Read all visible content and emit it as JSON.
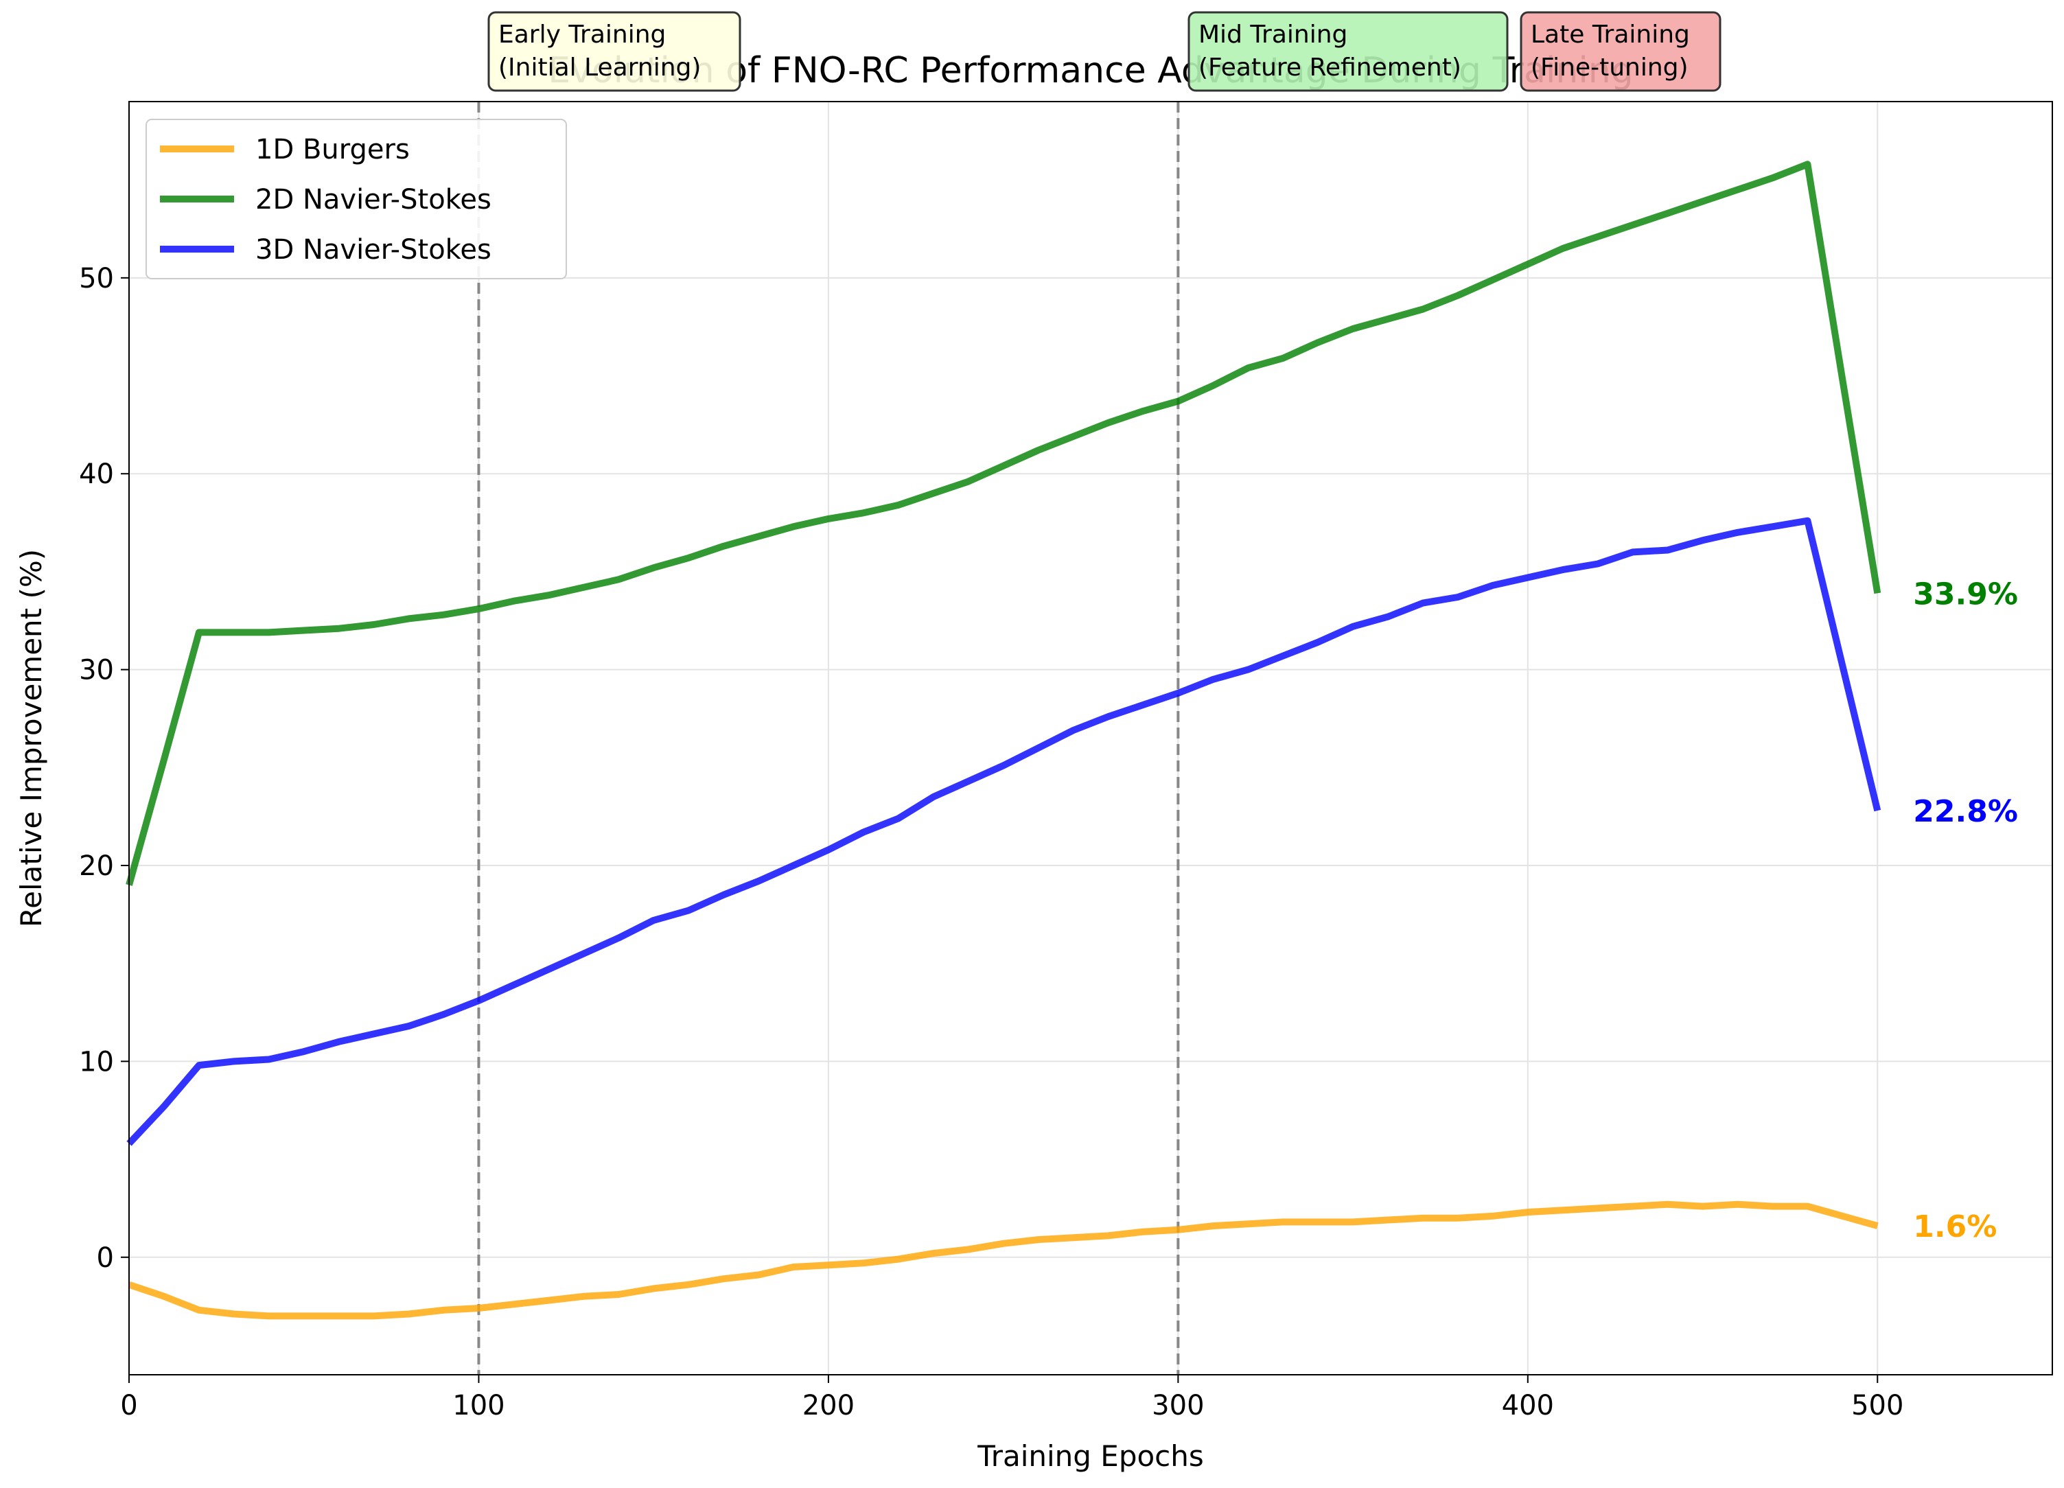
{
  "chart_data": {
    "type": "line",
    "title": "Evolution of FNO-RC Performance Advantage During Training",
    "xlabel": "Training Epochs",
    "ylabel": "Relative Improvement (%)",
    "xlim": [
      0,
      550
    ],
    "ylim": [
      -6,
      59
    ],
    "xticks": [
      0,
      100,
      200,
      300,
      400,
      500
    ],
    "yticks": [
      0,
      10,
      20,
      30,
      40,
      50
    ],
    "grid": true,
    "legend_position": "upper-left",
    "x": [
      0,
      10,
      20,
      30,
      40,
      50,
      60,
      70,
      80,
      90,
      100,
      110,
      120,
      130,
      140,
      150,
      160,
      170,
      180,
      190,
      200,
      210,
      220,
      230,
      240,
      250,
      260,
      270,
      280,
      290,
      300,
      310,
      320,
      330,
      340,
      350,
      360,
      370,
      380,
      390,
      400,
      410,
      420,
      430,
      440,
      450,
      460,
      470,
      480,
      490,
      500
    ],
    "series": [
      {
        "name": "1D Burgers",
        "color": "#FFA500",
        "values": [
          -1.4,
          -2.0,
          -2.7,
          -2.9,
          -3.0,
          -3.0,
          -3.0,
          -3.0,
          -2.9,
          -2.7,
          -2.6,
          -2.4,
          -2.2,
          -2.0,
          -1.9,
          -1.6,
          -1.4,
          -1.1,
          -0.9,
          -0.5,
          -0.4,
          -0.3,
          -0.1,
          0.2,
          0.4,
          0.7,
          0.9,
          1.0,
          1.1,
          1.3,
          1.4,
          1.6,
          1.7,
          1.8,
          1.8,
          1.8,
          1.9,
          2.0,
          2.0,
          2.1,
          2.3,
          2.4,
          2.5,
          2.6,
          2.7,
          2.6,
          2.7,
          2.6,
          2.6,
          2.1,
          1.6
        ],
        "end_label": "1.6%"
      },
      {
        "name": "2D Navier-Stokes",
        "color": "#008000",
        "values": [
          19.0,
          25.4,
          31.9,
          31.9,
          31.9,
          32.0,
          32.1,
          32.3,
          32.6,
          32.8,
          33.1,
          33.5,
          33.8,
          34.2,
          34.6,
          35.2,
          35.7,
          36.3,
          36.8,
          37.3,
          37.7,
          38.0,
          38.4,
          39.0,
          39.6,
          40.4,
          41.2,
          41.9,
          42.6,
          43.2,
          43.7,
          44.5,
          45.4,
          45.9,
          46.7,
          47.4,
          47.9,
          48.4,
          49.1,
          49.9,
          50.7,
          51.5,
          52.1,
          52.7,
          53.3,
          53.9,
          54.5,
          55.1,
          55.8,
          44.8,
          33.9
        ],
        "end_label": "33.9%"
      },
      {
        "name": "3D Navier-Stokes",
        "color": "#0000FF",
        "values": [
          5.8,
          7.7,
          9.8,
          10.0,
          10.1,
          10.5,
          11.0,
          11.4,
          11.8,
          12.4,
          13.1,
          13.9,
          14.7,
          15.5,
          16.3,
          17.2,
          17.7,
          18.5,
          19.2,
          20.0,
          20.8,
          21.7,
          22.4,
          23.5,
          24.3,
          25.1,
          26.0,
          26.9,
          27.6,
          28.2,
          28.8,
          29.5,
          30.0,
          30.7,
          31.4,
          32.2,
          32.7,
          33.4,
          33.7,
          34.3,
          34.7,
          35.1,
          35.4,
          36.0,
          36.1,
          36.6,
          37.0,
          37.3,
          37.6,
          30.2,
          22.8
        ],
        "end_label": "22.8%"
      }
    ],
    "phase_markers": [
      {
        "x": 100,
        "label_line1": "Early Training",
        "label_line2": "(Initial Learning)",
        "box_color": "#FFFFE0"
      },
      {
        "x": 300,
        "label_line1": "Mid Training",
        "label_line2": "(Feature Refinement)",
        "box_color": "#B3F3B3"
      },
      {
        "x": 400,
        "label_line1": "Late Training",
        "label_line2": "(Fine-tuning)",
        "box_color": "#F4A6A6"
      }
    ]
  }
}
